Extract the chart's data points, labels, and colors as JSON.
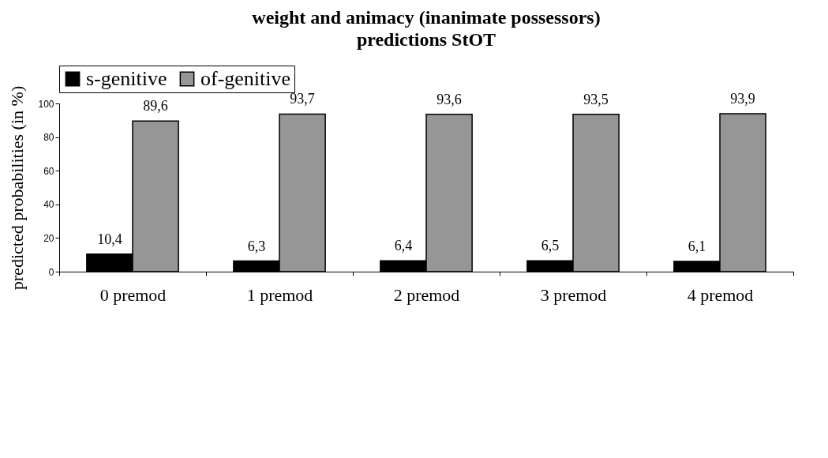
{
  "chart_data": {
    "type": "bar",
    "title": "weight and animacy (inanimate possessors)",
    "subtitle": "predictions StOT",
    "ylabel": "predicted probabilities (in %)",
    "categories": [
      "0 premod",
      "1 premod",
      "2 premod",
      "3 premod",
      "4 premod"
    ],
    "series": [
      {
        "name": "s-genitive",
        "color": "#000000",
        "values": [
          10.4,
          6.3,
          6.4,
          6.5,
          6.1
        ],
        "value_labels": [
          "10,4",
          "6,3",
          "6,4",
          "6,5",
          "6,1"
        ]
      },
      {
        "name": "of-genitive",
        "color": "#969696",
        "values": [
          89.6,
          93.7,
          93.6,
          93.5,
          93.9
        ],
        "value_labels": [
          "89,6",
          "93,7",
          "93,6",
          "93,5",
          "93,9"
        ]
      }
    ],
    "ylim": [
      0,
      100
    ],
    "yticks": [
      0,
      20,
      40,
      60,
      80,
      100
    ],
    "grid": false,
    "legend": "top"
  }
}
